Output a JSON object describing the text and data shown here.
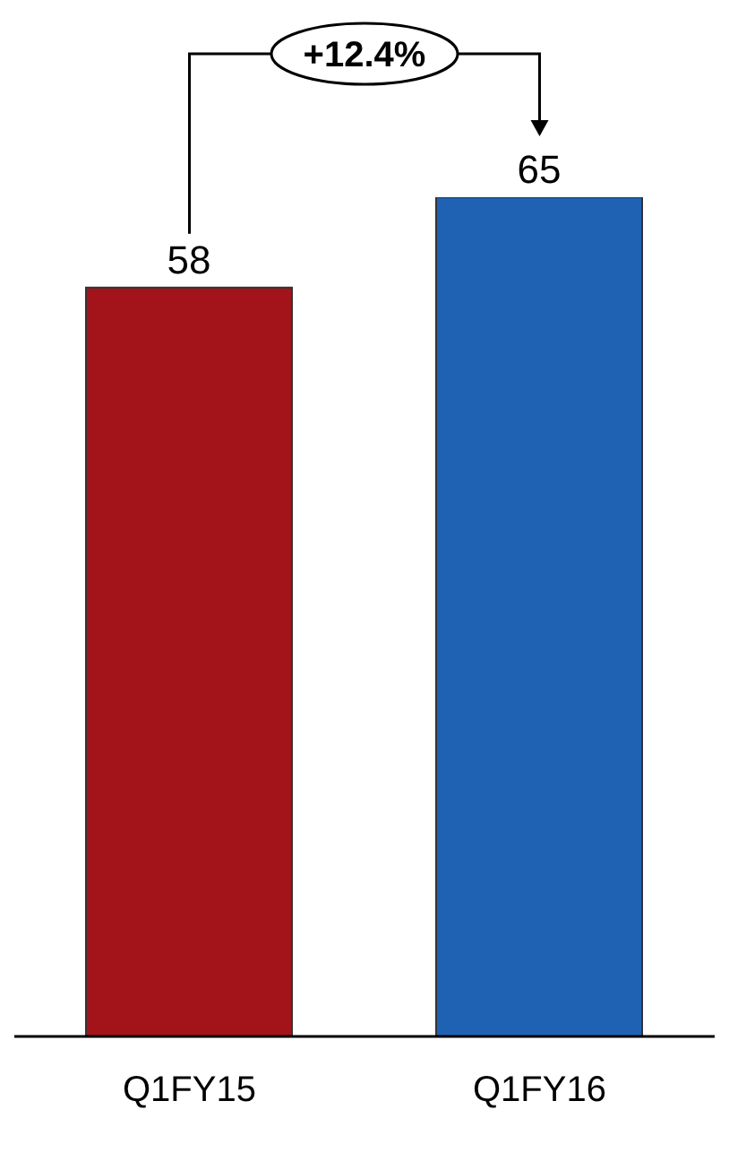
{
  "chart_data": {
    "type": "bar",
    "categories": [
      "Q1FY15",
      "Q1FY16"
    ],
    "values": [
      58,
      65
    ],
    "colors": [
      "#a3141a",
      "#1f62b3"
    ],
    "data_labels": true,
    "annotations": [
      "+12.4%"
    ],
    "grid": false,
    "legend": false
  }
}
